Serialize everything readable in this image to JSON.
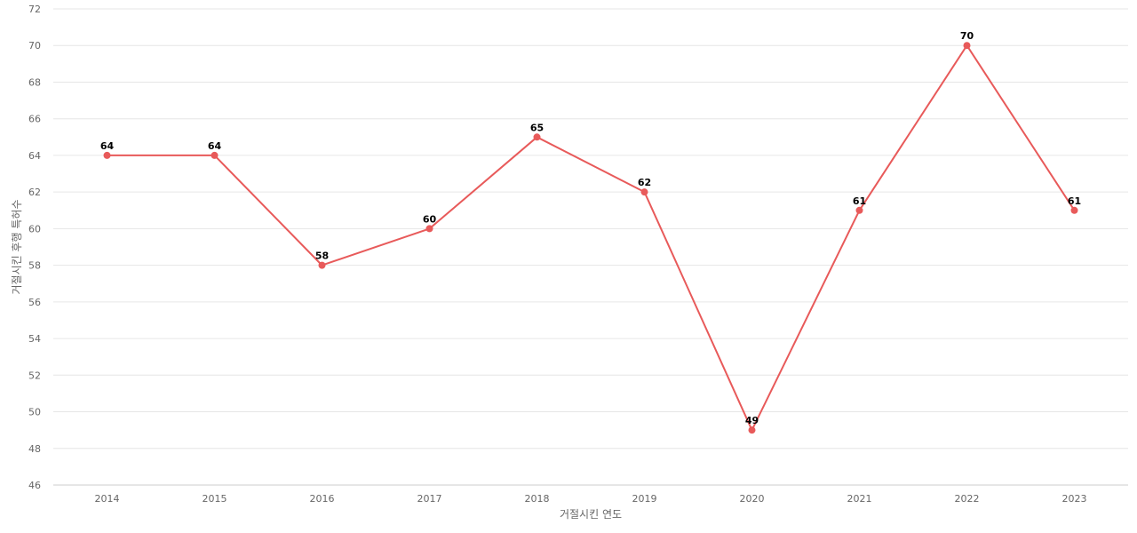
{
  "chart_data": {
    "type": "line",
    "title": "",
    "xlabel": "거절시킨 연도",
    "ylabel": "거절시킨 후행 특허수",
    "categories": [
      "2014",
      "2015",
      "2016",
      "2017",
      "2018",
      "2019",
      "2020",
      "2021",
      "2022",
      "2023"
    ],
    "series": [
      {
        "values": [
          64,
          64,
          58,
          60,
          65,
          62,
          49,
          61,
          70,
          61
        ],
        "color": "#e85a5a"
      }
    ],
    "ylim": [
      46,
      72
    ],
    "yticks": [
      46,
      48,
      50,
      52,
      54,
      56,
      58,
      60,
      62,
      64,
      66,
      68,
      70,
      72
    ],
    "grid": true,
    "legend": "none",
    "data_labels": true
  }
}
